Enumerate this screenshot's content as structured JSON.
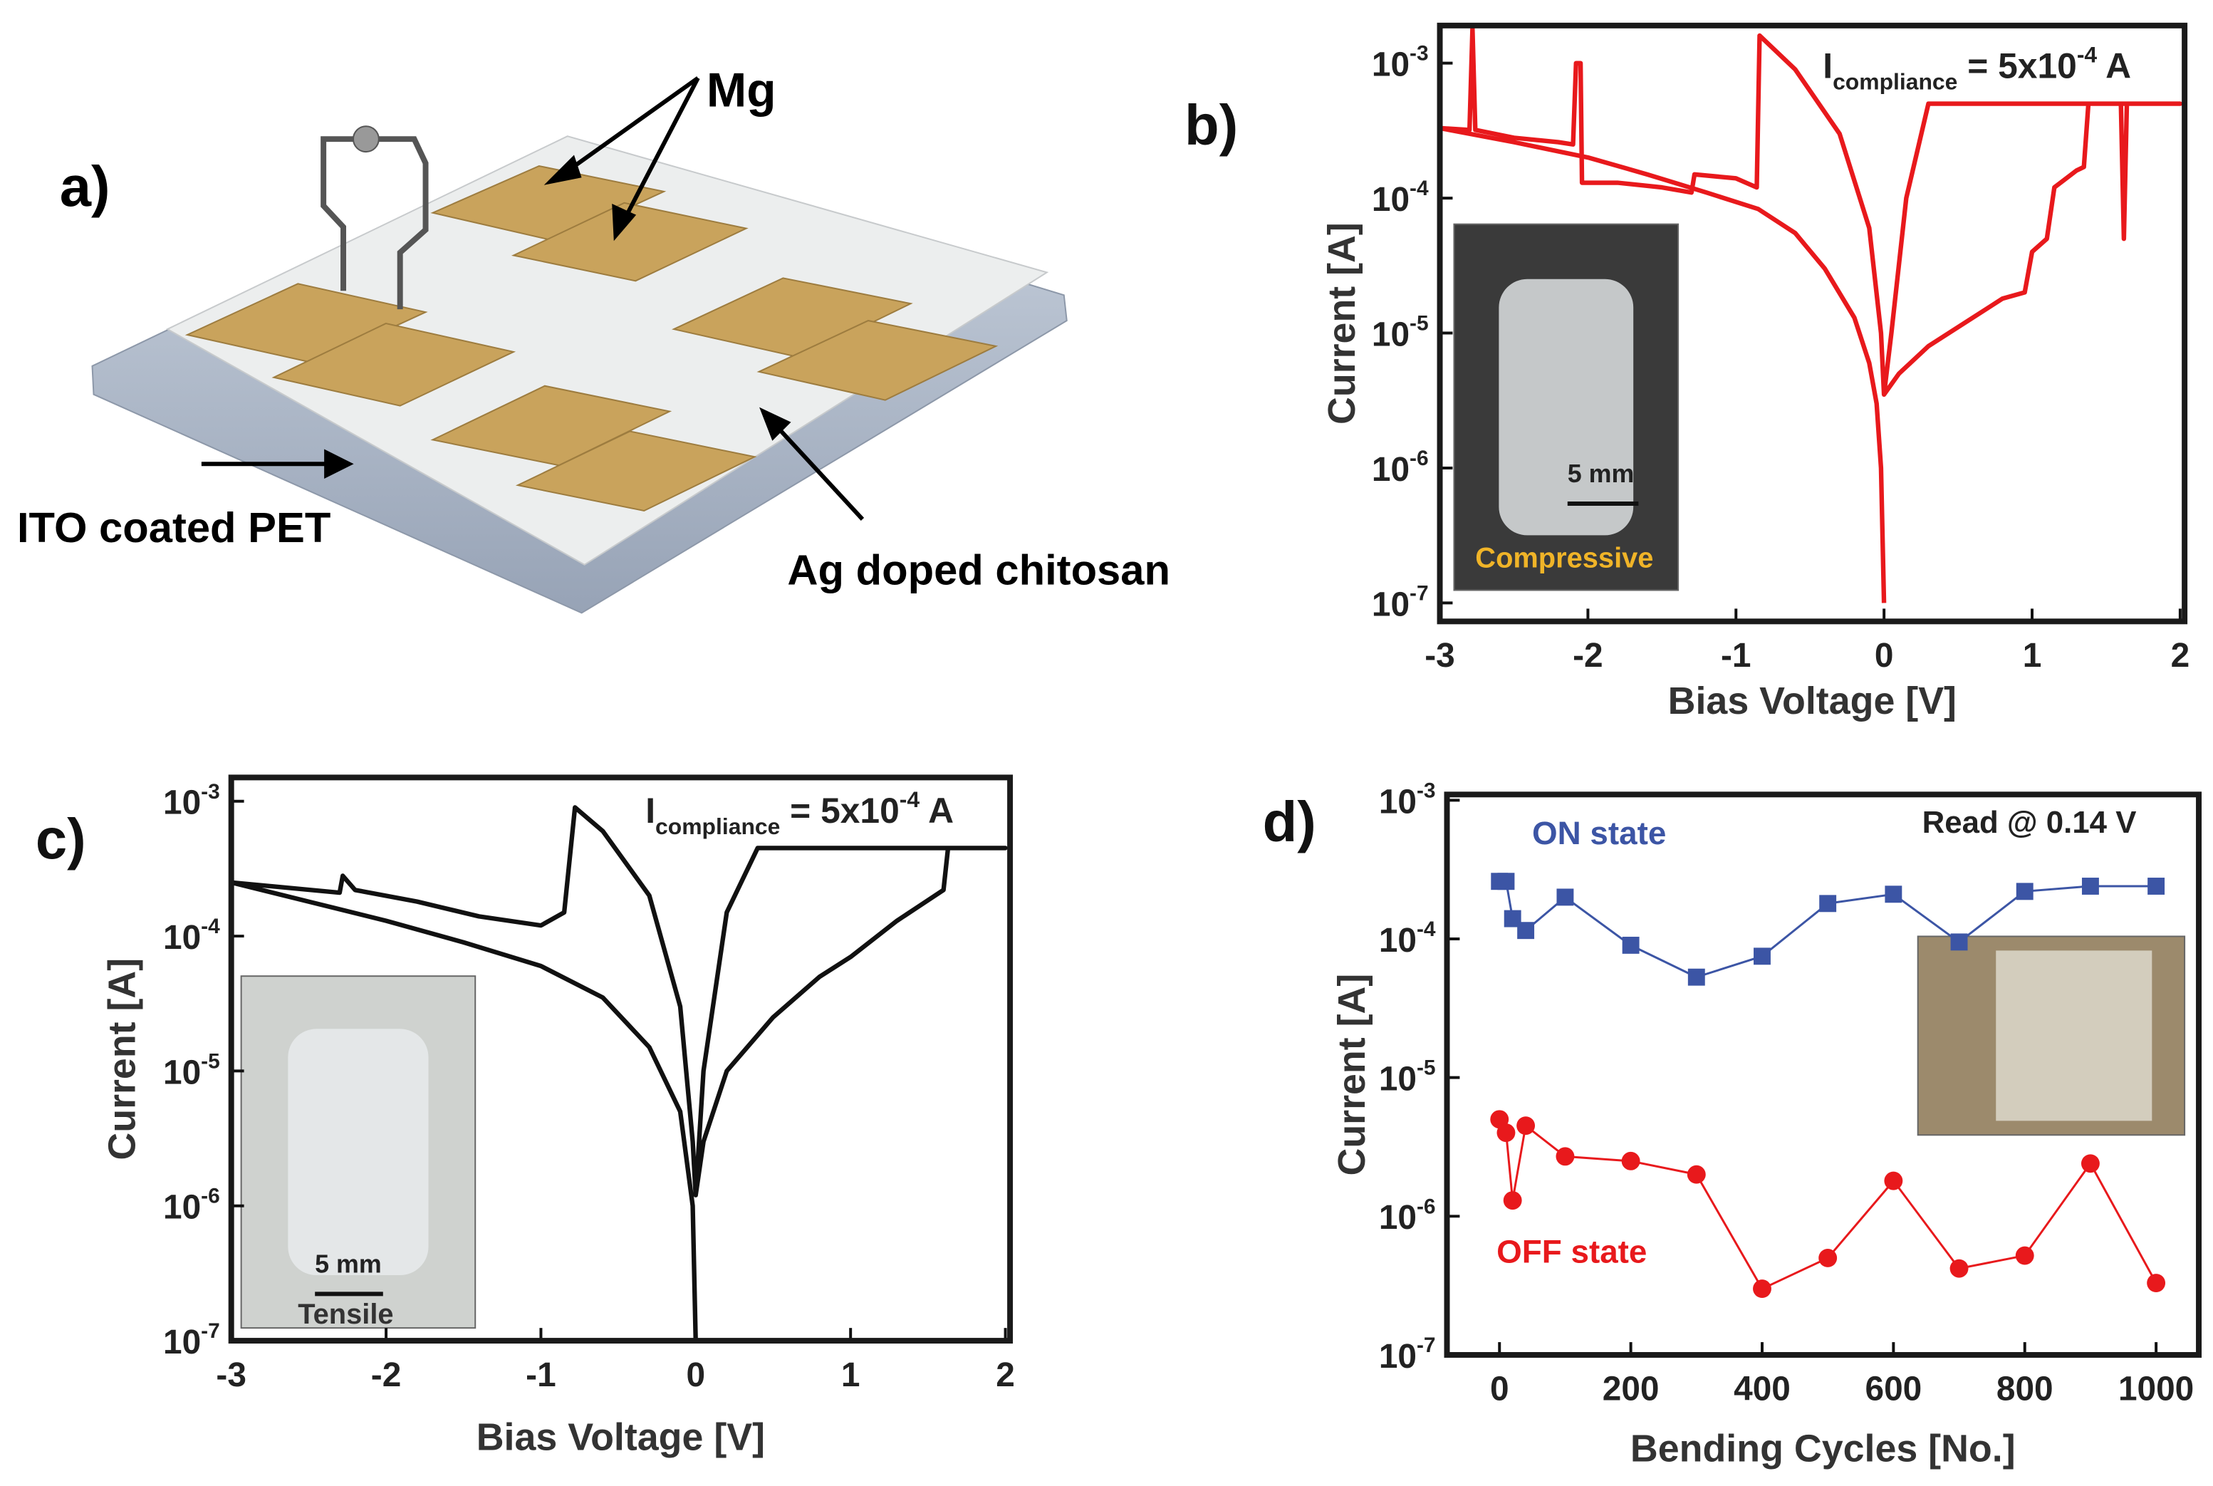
{
  "diagram": {
    "panel_label": "a)",
    "labels": [
      "Mg",
      "ITO coated PET",
      "Ag doped chitosan"
    ]
  },
  "chart_data": [
    {
      "type": "line",
      "panel_label": "b)",
      "x_label": "Bias Voltage [V]",
      "y_label": "Current [A]",
      "log_y": true,
      "color": "#e8191c",
      "annotation": {
        "symbol": "I",
        "subscript": "compliance",
        "text": " = 5x10",
        "exponent": "-4",
        "unit": " A"
      },
      "inset": {
        "scale": "5 mm",
        "caption": "Compressive"
      },
      "xlim": [
        -3,
        2.03
      ],
      "ylim": [
        7.3e-08,
        0.0019
      ],
      "xticks": [
        -3,
        -2,
        -1,
        0,
        1,
        2
      ],
      "yticks": [
        {
          "value": 1e-07,
          "label": "10",
          "exponent": "-7"
        },
        {
          "value": 1e-06,
          "label": "10",
          "exponent": "-6"
        },
        {
          "value": 1e-05,
          "label": "10",
          "exponent": "-5"
        },
        {
          "value": 0.0001,
          "label": "10",
          "exponent": "-4"
        },
        {
          "value": 0.001,
          "label": "10",
          "exponent": "-3"
        }
      ],
      "x": [
        0,
        -0.02,
        -0.05,
        -0.1,
        -0.2,
        -0.4,
        -0.6,
        -0.85,
        -1.2,
        -1.6,
        -2,
        -2.5,
        -3,
        -2.8,
        -2.78,
        -2.76,
        -2.5,
        -2.2,
        -2.1,
        -2.08,
        -2.05,
        -2.04,
        -1.8,
        -1.5,
        -1.3,
        -1.28,
        -1.0,
        -0.86,
        -0.84,
        -0.6,
        -0.3,
        -0.1,
        -0.02,
        0,
        0.1,
        0.3,
        0.6,
        0.8,
        0.95,
        1.0,
        1.1,
        1.15,
        1.3,
        1.35,
        1.38,
        1.6,
        1.62,
        1.64,
        2,
        0.3,
        0.15,
        0.05,
        0
      ],
      "values": [
        1e-07,
        1e-06,
        3e-06,
        6e-06,
        1.3e-05,
        3e-05,
        5.5e-05,
        8.3e-05,
        0.00011,
        0.00015,
        0.0002,
        0.00026,
        0.00033,
        0.00032,
        0.0018,
        0.00032,
        0.00028,
        0.00026,
        0.00025,
        0.001,
        0.001,
        0.00013,
        0.00013,
        0.00012,
        0.00011,
        0.00015,
        0.00014,
        0.00012,
        0.0016,
        0.0009,
        0.0003,
        6e-05,
        1e-05,
        3.5e-06,
        5e-06,
        8e-06,
        1.3e-05,
        1.8e-05,
        2e-05,
        4e-05,
        5e-05,
        0.00012,
        0.00016,
        0.00017,
        0.0005,
        0.0005,
        5e-05,
        0.0005,
        0.0005,
        0.0005,
        0.0001,
        1e-05,
        3.5e-06
      ]
    },
    {
      "type": "line",
      "panel_label": "c)",
      "x_label": "Bias Voltage [V]",
      "y_label": "Current [A]",
      "log_y": true,
      "color": "#111111",
      "annotation": {
        "symbol": "I",
        "subscript": "compliance",
        "text": " = 5x10",
        "exponent": "-4",
        "unit": " A"
      },
      "inset": {
        "scale": "5 mm",
        "caption": "Tensile"
      },
      "xlim": [
        -3,
        2.03
      ],
      "ylim": [
        1e-07,
        0.0015
      ],
      "xticks": [
        -3,
        -2,
        -1,
        0,
        1,
        2
      ],
      "yticks": [
        {
          "value": 1e-07,
          "label": "10",
          "exponent": "-7"
        },
        {
          "value": 1e-06,
          "label": "10",
          "exponent": "-6"
        },
        {
          "value": 1e-05,
          "label": "10",
          "exponent": "-5"
        },
        {
          "value": 0.0001,
          "label": "10",
          "exponent": "-4"
        },
        {
          "value": 0.001,
          "label": "10",
          "exponent": "-3"
        }
      ],
      "x": [
        0,
        -0.02,
        -0.1,
        -0.3,
        -0.6,
        -1,
        -1.5,
        -2,
        -2.5,
        -3,
        -2.3,
        -2.28,
        -2.2,
        -1.8,
        -1.4,
        -1.0,
        -0.85,
        -0.78,
        -0.6,
        -0.3,
        -0.1,
        -0.02,
        0,
        0.05,
        0.2,
        0.5,
        0.8,
        1.0,
        1.3,
        1.6,
        1.63,
        2.0,
        0.4,
        0.2,
        0.05,
        0
      ],
      "values": [
        1e-07,
        1e-06,
        5e-06,
        1.5e-05,
        3.5e-05,
        6e-05,
        9e-05,
        0.00013,
        0.00018,
        0.00025,
        0.00021,
        0.00028,
        0.00022,
        0.00018,
        0.00014,
        0.00012,
        0.00015,
        0.0009,
        0.0006,
        0.0002,
        3e-05,
        3e-06,
        1.2e-06,
        3e-06,
        1e-05,
        2.5e-05,
        5e-05,
        7e-05,
        0.00013,
        0.00022,
        0.00045,
        0.00045,
        0.00045,
        0.00015,
        1e-05,
        1.2e-06
      ]
    },
    {
      "type": "line",
      "panel_label": "d)",
      "x_label": "Bending Cycles [No.]",
      "y_label": "Current [A]",
      "log_y": true,
      "annotation_text": "Read @ 0.14 V",
      "xlim": [
        -80,
        1065
      ],
      "ylim": [
        1e-07,
        0.0011
      ],
      "xticks": [
        0,
        200,
        400,
        600,
        800,
        1000
      ],
      "yticks": [
        {
          "value": 1e-07,
          "label": "10",
          "exponent": "-7"
        },
        {
          "value": 1e-06,
          "label": "10",
          "exponent": "-6"
        },
        {
          "value": 1e-05,
          "label": "10",
          "exponent": "-5"
        },
        {
          "value": 0.0001,
          "label": "10",
          "exponent": "-4"
        },
        {
          "value": 0.001,
          "label": "10",
          "exponent": "-3"
        }
      ],
      "x": [
        0,
        10,
        20,
        40,
        100,
        200,
        300,
        400,
        500,
        600,
        700,
        800,
        900,
        1000
      ],
      "series": [
        {
          "name": "ON state",
          "color": "#3c55a5",
          "marker": "square",
          "values": [
            0.00026,
            0.00026,
            0.00014,
            0.000115,
            0.0002,
            9e-05,
            5.3e-05,
            7.5e-05,
            0.00018,
            0.00021,
            9.5e-05,
            0.00022,
            0.00024,
            0.00024
          ]
        },
        {
          "name": "OFF state",
          "color": "#e8191c",
          "marker": "circle",
          "values": [
            5e-06,
            4e-06,
            1.3e-06,
            4.5e-06,
            2.7e-06,
            2.5e-06,
            2e-06,
            3e-07,
            5e-07,
            1.8e-06,
            4.2e-07,
            5.2e-07,
            2.4e-06,
            3.3e-07
          ]
        }
      ]
    }
  ]
}
